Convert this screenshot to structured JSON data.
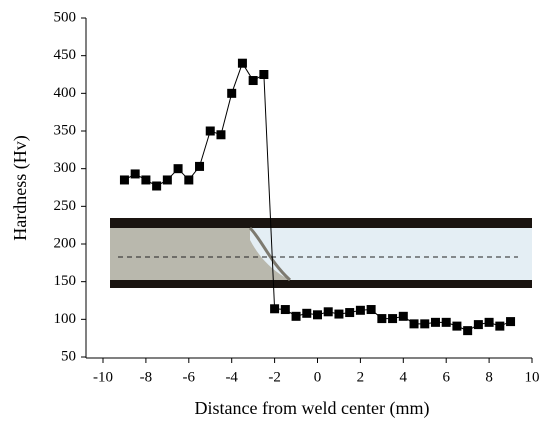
{
  "chart_data": {
    "type": "line",
    "x_label": "Distance from weld center (mm)",
    "y_label": "Hardness (Hv)",
    "xlim": [
      -10,
      10
    ],
    "ylim": [
      50,
      500
    ],
    "xticks": [
      -10,
      -8,
      -6,
      -4,
      -2,
      0,
      2,
      4,
      6,
      8,
      10
    ],
    "yticks": [
      50,
      100,
      150,
      200,
      250,
      300,
      350,
      400,
      450,
      500
    ],
    "series": [
      {
        "color": "#000000",
        "x": [
          -9,
          -8.5,
          -8,
          -7.5,
          -7,
          -6.5,
          -6,
          -5.5,
          -5,
          -4.5,
          -4,
          -3.5,
          -3,
          -2.5,
          -2,
          -1.5,
          -1,
          -0.5,
          0,
          0.5,
          1,
          1.5,
          2,
          2.5,
          3,
          3.5,
          4,
          4.5,
          5,
          5.5,
          6,
          6.5,
          7,
          7.5,
          8,
          8.5,
          9
        ],
        "values": [
          285,
          293,
          285,
          277,
          285,
          300,
          285,
          303,
          350,
          345,
          400,
          440,
          417,
          425,
          114,
          113,
          104,
          108,
          106,
          110,
          107,
          109,
          112,
          113,
          101,
          101,
          104,
          94,
          94,
          96,
          96,
          91,
          85,
          93,
          96,
          91,
          97
        ]
      }
    ]
  }
}
